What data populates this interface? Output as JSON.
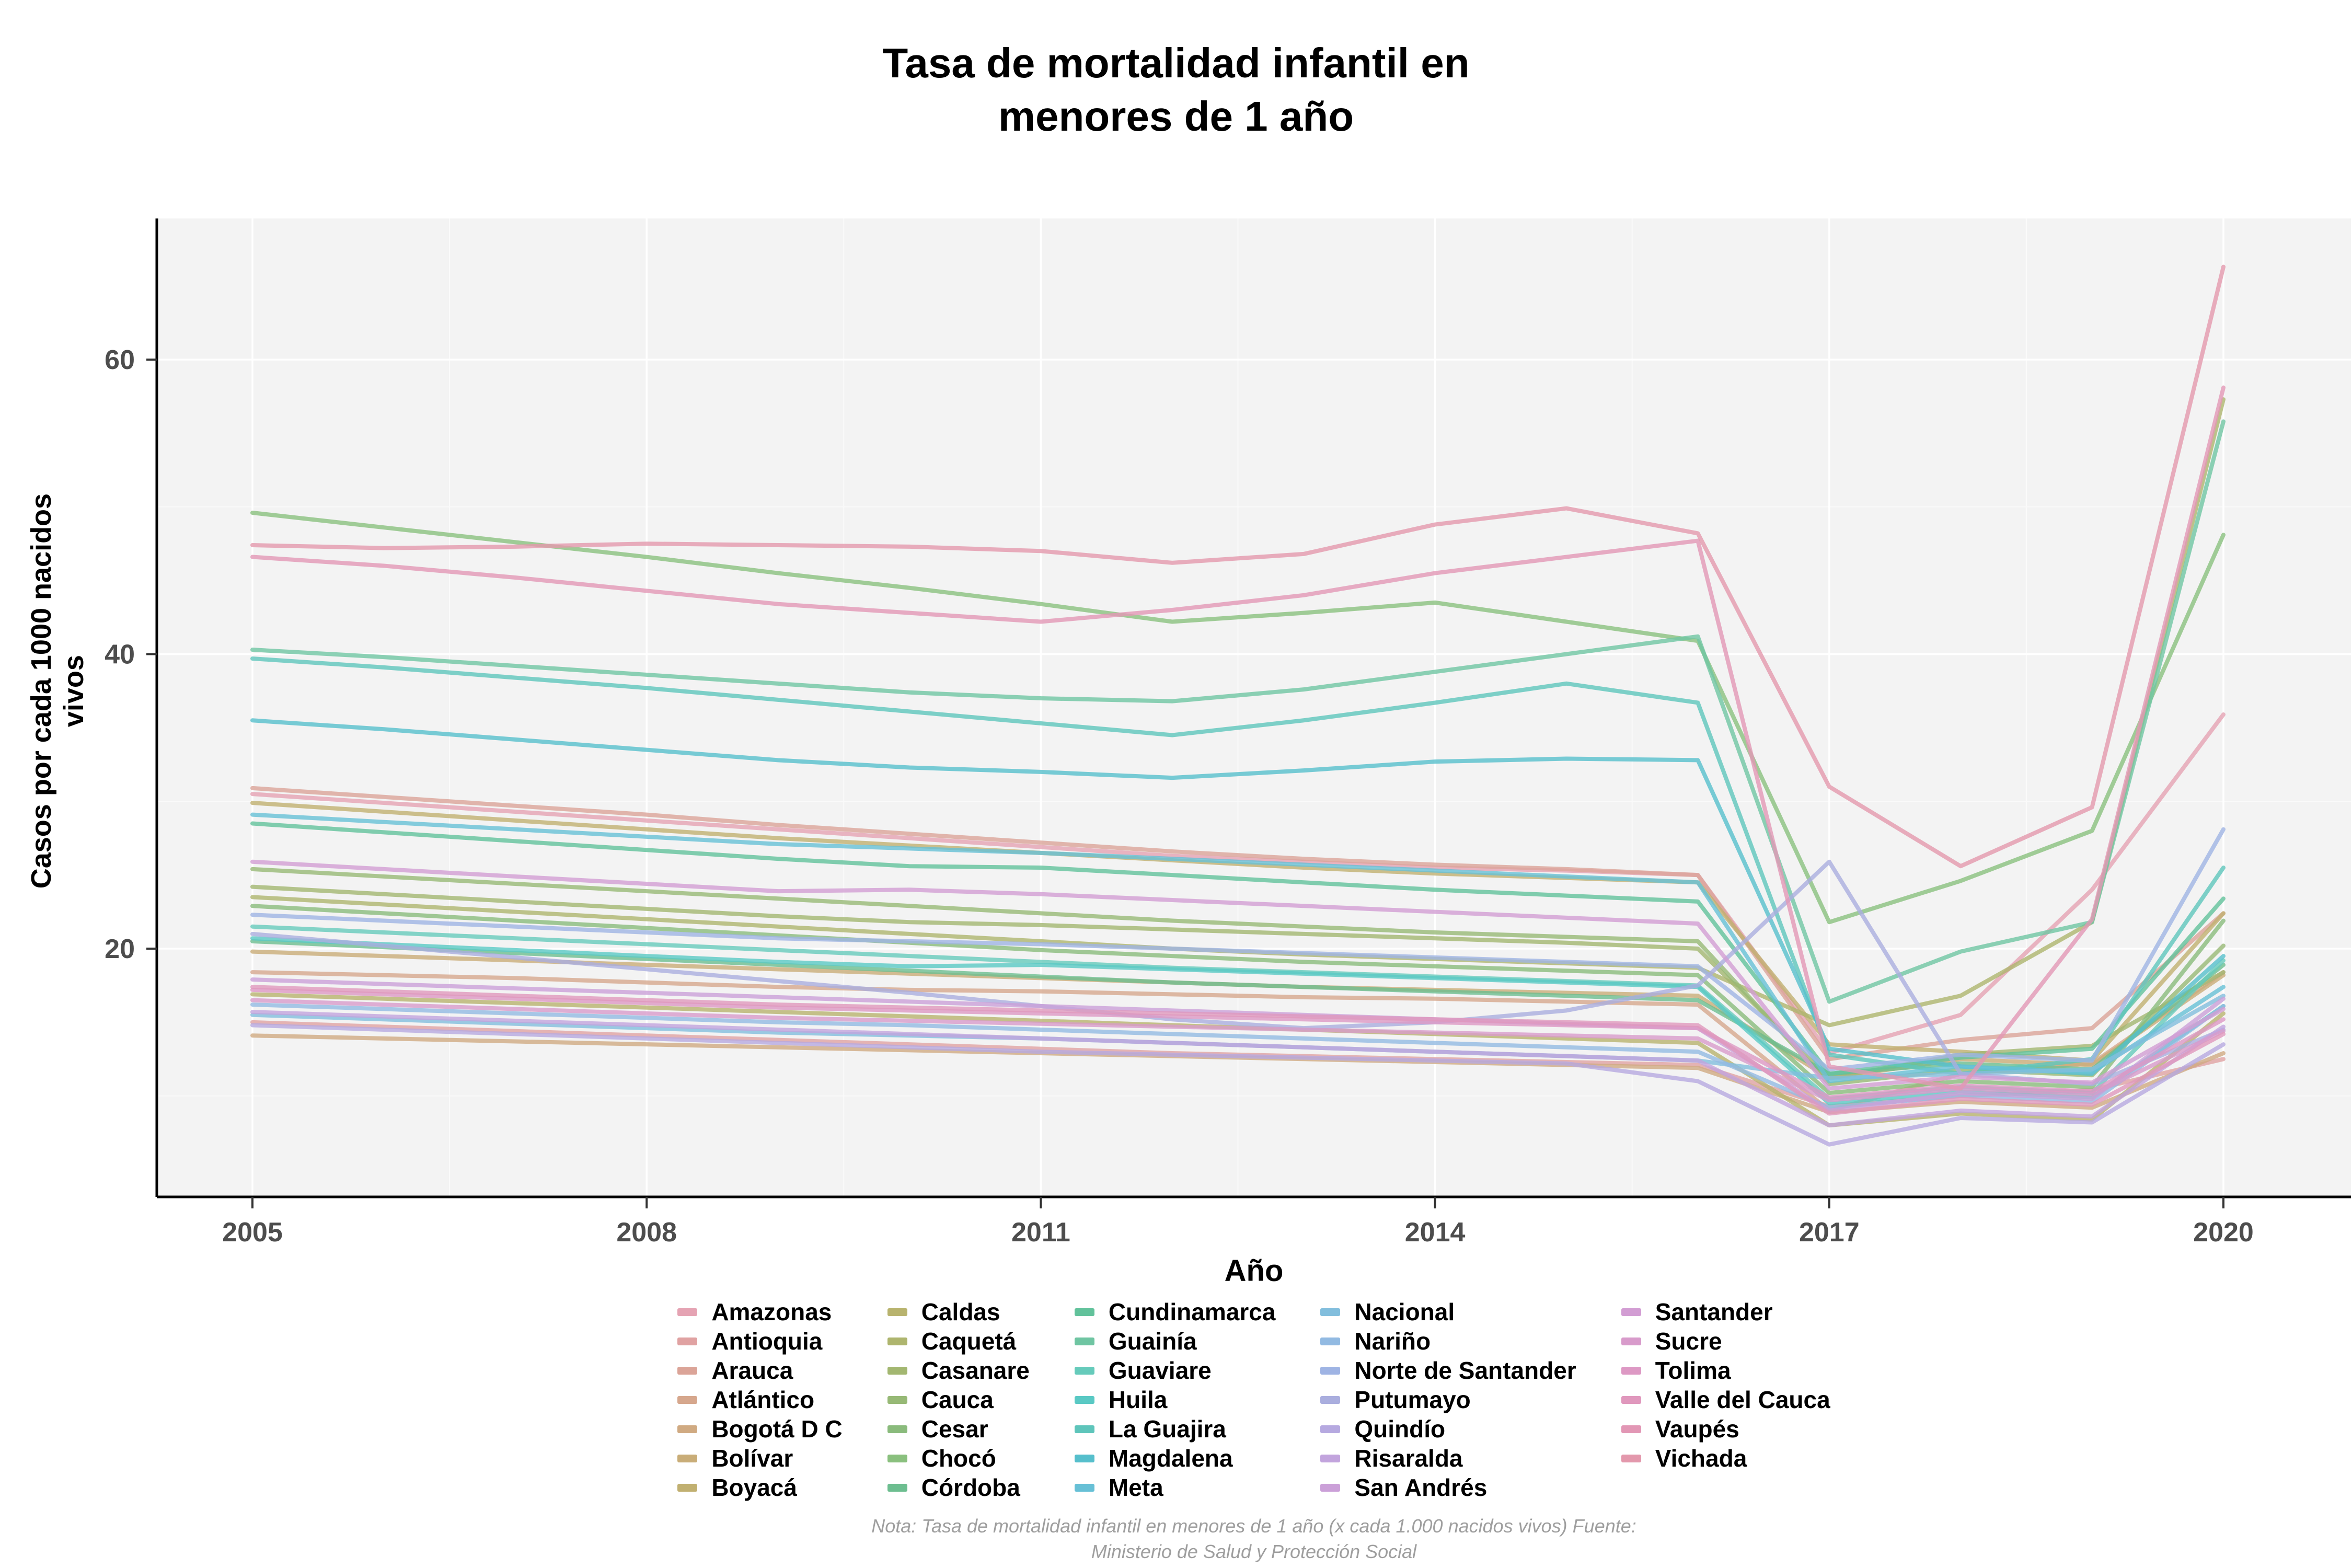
{
  "title_lines": [
    "Tasa de mortalidad infantil en",
    "menores de 1 año"
  ],
  "y_axis": {
    "title": "Casos por cada 1000 nacidos vivos",
    "ticks": [
      20,
      40,
      60
    ],
    "minor_ticks": [
      10,
      30,
      50
    ]
  },
  "x_axis": {
    "title": "Año",
    "ticks": [
      2005,
      2008,
      2011,
      2014,
      2017,
      2020
    ],
    "minor_ticks": [
      2006.5,
      2009.5,
      2012.5,
      2015.5,
      2018.5
    ]
  },
  "caption_lines": [
    "Nota: Tasa de mortalidad infantil en menores de 1 año (x cada 1.000 nacidos vivos) Fuente:",
    "Ministerio de Salud y Protección Social"
  ],
  "panel": {
    "bg": "#f3f3f3",
    "grid_major": "#ffffff",
    "grid_minor": "#fafafa",
    "axis_line": "#000000",
    "tick_color": "#333333",
    "tick_label_color": "#4d4d4d"
  },
  "legend_columns": [
    7,
    7,
    7,
    7,
    6
  ],
  "chart_data": {
    "type": "line",
    "title": "Tasa de mortalidad infantil en menores de 1 año",
    "xlabel": "Año",
    "ylabel": "Casos por cada 1000 nacidos vivos",
    "ylim": [
      3,
      68
    ],
    "grid": true,
    "legend_position": "bottom",
    "x": [
      2005,
      2006,
      2007,
      2008,
      2009,
      2010,
      2011,
      2012,
      2013,
      2014,
      2015,
      2016,
      2017,
      2018,
      2019,
      2020
    ],
    "series": [
      {
        "name": "Amazonas",
        "color": "#e5a3b3",
        "values": [
          30.5,
          29.9,
          29.3,
          28.7,
          28.1,
          27.5,
          26.9,
          26.3,
          25.9,
          25.5,
          25.3,
          25.0,
          12.9,
          15.5,
          24.0,
          35.9
        ]
      },
      {
        "name": "Antioquia",
        "color": "#e0a2a2",
        "values": [
          15.0,
          14.7,
          14.4,
          14.1,
          13.8,
          13.5,
          13.2,
          12.9,
          12.7,
          12.5,
          12.3,
          12.1,
          9.3,
          10.0,
          10.4,
          12.5
        ]
      },
      {
        "name": "Arauca",
        "color": "#dba498",
        "values": [
          30.9,
          30.3,
          29.7,
          29.1,
          28.4,
          27.8,
          27.2,
          26.6,
          26.1,
          25.7,
          25.4,
          25.0,
          12.5,
          13.8,
          14.6,
          22.4
        ]
      },
      {
        "name": "Atlántico",
        "color": "#d6a78d",
        "values": [
          18.4,
          18.2,
          18.0,
          17.7,
          17.4,
          17.2,
          17.1,
          16.9,
          16.7,
          16.6,
          16.4,
          16.2,
          9.0,
          11.5,
          12.2,
          18.4
        ]
      },
      {
        "name": "Bogotá D C",
        "color": "#d0aa82",
        "values": [
          14.1,
          13.9,
          13.7,
          13.5,
          13.3,
          13.1,
          12.9,
          12.7,
          12.5,
          12.3,
          12.1,
          11.9,
          8.9,
          9.6,
          9.2,
          12.9
        ]
      },
      {
        "name": "Bolívar",
        "color": "#c9ad78",
        "values": [
          19.8,
          19.5,
          19.2,
          18.9,
          18.6,
          18.3,
          18.0,
          17.7,
          17.4,
          17.2,
          17.0,
          16.8,
          11.2,
          12.5,
          12.1,
          18.2
        ]
      },
      {
        "name": "Boyacá",
        "color": "#c1b071",
        "values": [
          29.9,
          29.3,
          28.7,
          28.1,
          27.5,
          27.0,
          26.5,
          26.0,
          25.5,
          25.1,
          24.8,
          24.5,
          13.5,
          13.0,
          12.4,
          22.4
        ]
      },
      {
        "name": "Caldas",
        "color": "#b8b36e",
        "values": [
          16.9,
          16.6,
          16.3,
          16.0,
          15.7,
          15.4,
          15.1,
          14.8,
          14.5,
          14.2,
          13.9,
          13.6,
          8.0,
          8.8,
          8.4,
          15.6
        ]
      },
      {
        "name": "Caquetá",
        "color": "#aeb56e",
        "values": [
          23.5,
          23.0,
          22.5,
          22.0,
          21.5,
          21.0,
          20.5,
          20.0,
          19.6,
          19.3,
          19.0,
          18.7,
          14.8,
          16.8,
          21.8,
          57.3
        ]
      },
      {
        "name": "Casanare",
        "color": "#a3b771",
        "values": [
          24.2,
          23.7,
          23.2,
          22.7,
          22.2,
          21.8,
          21.6,
          21.3,
          21.0,
          20.7,
          20.4,
          20.0,
          11.2,
          12.8,
          13.4,
          18.4
        ]
      },
      {
        "name": "Cauca",
        "color": "#97b976",
        "values": [
          25.4,
          24.9,
          24.4,
          23.9,
          23.4,
          22.9,
          22.4,
          21.9,
          21.5,
          21.1,
          20.8,
          20.5,
          10.8,
          11.8,
          11.4,
          20.2
        ]
      },
      {
        "name": "Cesar",
        "color": "#8abb7c",
        "values": [
          22.9,
          22.4,
          21.9,
          21.4,
          20.9,
          20.4,
          19.9,
          19.5,
          19.1,
          18.8,
          18.5,
          18.2,
          10.2,
          11.0,
          10.6,
          21.9
        ]
      },
      {
        "name": "Chocó",
        "color": "#8ac07e",
        "values": [
          49.6,
          48.6,
          47.6,
          46.6,
          45.5,
          44.5,
          43.4,
          42.2,
          42.8,
          43.5,
          42.2,
          40.9,
          21.8,
          24.6,
          28.0,
          48.1
        ]
      },
      {
        "name": "Córdoba",
        "color": "#6dbe90",
        "values": [
          20.5,
          20.1,
          19.7,
          19.3,
          18.9,
          18.5,
          18.1,
          17.7,
          17.4,
          17.1,
          16.8,
          16.5,
          11.5,
          12.2,
          11.8,
          18.9
        ]
      },
      {
        "name": "Cundinamarca",
        "color": "#62c29b",
        "values": [
          28.5,
          27.9,
          27.3,
          26.7,
          26.1,
          25.6,
          25.5,
          25.0,
          24.5,
          24.0,
          23.6,
          23.2,
          11.5,
          12.6,
          13.2,
          23.4
        ]
      },
      {
        "name": "Guainía",
        "color": "#6fc5a2",
        "values": [
          40.3,
          39.8,
          39.2,
          38.6,
          38.0,
          37.4,
          37.0,
          36.8,
          37.6,
          38.8,
          40.0,
          41.2,
          16.4,
          19.8,
          21.8,
          55.8
        ]
      },
      {
        "name": "Guaviare",
        "color": "#66cbbb",
        "values": [
          21.5,
          21.1,
          20.7,
          20.3,
          19.9,
          19.5,
          19.1,
          18.7,
          18.4,
          18.1,
          17.8,
          17.5,
          9.8,
          10.6,
          10.2,
          19.2
        ]
      },
      {
        "name": "Huila",
        "color": "#5ac9c4",
        "values": [
          20.7,
          20.3,
          19.9,
          19.5,
          19.1,
          18.8,
          18.9,
          18.6,
          18.3,
          18.0,
          17.7,
          17.4,
          9.5,
          10.3,
          9.9,
          16.1
        ]
      },
      {
        "name": "La Guajira",
        "color": "#5ec5bb",
        "values": [
          39.7,
          39.1,
          38.4,
          37.7,
          36.9,
          36.1,
          35.3,
          34.5,
          35.5,
          36.7,
          38.0,
          36.7,
          12.8,
          11.5,
          12.5,
          25.5
        ]
      },
      {
        "name": "Magdalena",
        "color": "#56bfcc",
        "values": [
          35.5,
          34.9,
          34.2,
          33.5,
          32.8,
          32.3,
          32.0,
          31.6,
          32.1,
          32.7,
          32.9,
          32.8,
          13.2,
          12.0,
          11.5,
          19.5
        ]
      },
      {
        "name": "Meta",
        "color": "#67c0d6",
        "values": [
          29.1,
          28.6,
          28.1,
          27.6,
          27.1,
          26.8,
          26.5,
          26.1,
          25.7,
          25.3,
          24.9,
          24.5,
          11.0,
          12.0,
          11.6,
          17.4
        ]
      },
      {
        "name": "Nacional",
        "color": "#82bedd",
        "values": [
          15.5,
          15.2,
          14.9,
          14.6,
          14.3,
          14.1,
          13.9,
          13.6,
          13.3,
          13.0,
          12.7,
          12.4,
          11.2,
          11.5,
          11.8,
          16.8
        ]
      },
      {
        "name": "Nariño",
        "color": "#92bae2",
        "values": [
          16.2,
          15.9,
          15.6,
          15.3,
          15.0,
          14.8,
          14.5,
          14.2,
          13.9,
          13.6,
          13.3,
          13.0,
          9.2,
          10.0,
          9.6,
          16.1
        ]
      },
      {
        "name": "Norte de Santander",
        "color": "#9fb4e4",
        "values": [
          22.3,
          21.9,
          21.5,
          21.1,
          20.7,
          20.5,
          20.3,
          20.0,
          19.7,
          19.4,
          19.1,
          18.8,
          11.8,
          12.8,
          12.4,
          28.1
        ]
      },
      {
        "name": "Putumayo",
        "color": "#aaaede",
        "values": [
          21.0,
          20.2,
          19.4,
          18.6,
          17.8,
          17.0,
          16.1,
          15.2,
          14.6,
          15.0,
          15.8,
          17.5,
          25.9,
          11.5,
          10.8,
          14.5
        ]
      },
      {
        "name": "Quindío",
        "color": "#b6a9e0",
        "values": [
          14.8,
          14.5,
          14.2,
          13.9,
          13.6,
          13.3,
          13.0,
          12.8,
          12.6,
          12.4,
          12.2,
          11.0,
          6.7,
          8.5,
          8.2,
          13.5
        ]
      },
      {
        "name": "Risaralda",
        "color": "#c2a4dd",
        "values": [
          15.7,
          15.4,
          15.1,
          14.8,
          14.5,
          14.2,
          13.9,
          13.6,
          13.3,
          13.0,
          12.7,
          12.4,
          8.0,
          9.0,
          8.6,
          14.7
        ]
      },
      {
        "name": "San Andrés",
        "color": "#cba0d8",
        "values": [
          17.9,
          17.6,
          17.3,
          17.0,
          16.7,
          16.4,
          16.1,
          15.8,
          15.5,
          15.2,
          14.9,
          14.6,
          9.0,
          10.2,
          9.8,
          16.6
        ]
      },
      {
        "name": "Santander",
        "color": "#d29dd3",
        "values": [
          25.9,
          25.4,
          24.9,
          24.4,
          23.9,
          24.0,
          23.7,
          23.3,
          22.9,
          22.5,
          22.1,
          21.7,
          10.5,
          11.3,
          10.9,
          15.9
        ]
      },
      {
        "name": "Sucre",
        "color": "#d89bcb",
        "values": [
          16.5,
          16.2,
          15.9,
          15.6,
          15.3,
          15.1,
          14.9,
          14.7,
          14.5,
          14.3,
          14.1,
          13.9,
          9.7,
          10.5,
          10.1,
          14.4
        ]
      },
      {
        "name": "Tolima",
        "color": "#dd99c4",
        "values": [
          17.2,
          16.9,
          16.6,
          16.3,
          16.0,
          15.8,
          15.6,
          15.4,
          15.2,
          15.0,
          14.8,
          14.6,
          9.9,
          10.7,
          10.3,
          15.2
        ]
      },
      {
        "name": "Valle del Cauca",
        "color": "#e098bd",
        "values": [
          17.4,
          17.1,
          16.8,
          16.5,
          16.2,
          16.0,
          15.8,
          15.6,
          15.4,
          15.2,
          15.0,
          14.8,
          8.8,
          9.8,
          9.4,
          14.2
        ]
      },
      {
        "name": "Vaupés",
        "color": "#e297b5",
        "values": [
          46.6,
          46.0,
          45.2,
          44.3,
          43.4,
          42.8,
          42.2,
          43.0,
          44.0,
          45.5,
          46.6,
          47.7,
          12.0,
          10.5,
          22.0,
          58.1
        ]
      },
      {
        "name": "Vichada",
        "color": "#e398ac",
        "values": [
          47.4,
          47.2,
          47.3,
          47.5,
          47.4,
          47.3,
          47.0,
          46.2,
          46.8,
          48.8,
          49.9,
          48.2,
          31.0,
          25.6,
          29.6,
          66.3
        ]
      }
    ]
  }
}
